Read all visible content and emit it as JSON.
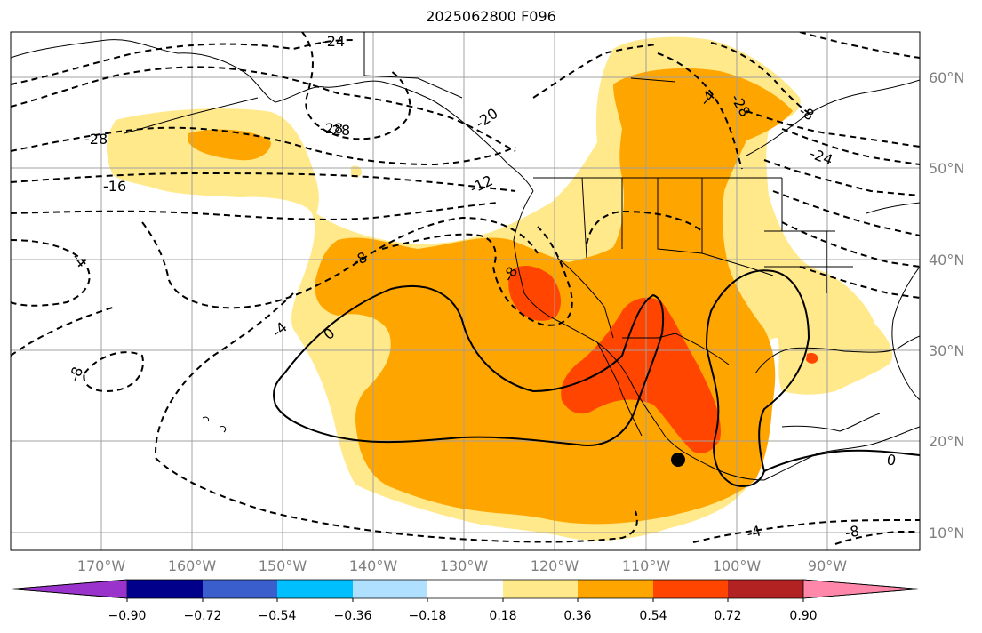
{
  "title": "2025062800 F096",
  "lat_labels": [
    "60°N",
    "50°N",
    "40°N",
    "30°N",
    "20°N",
    "10°N"
  ],
  "lon_labels": [
    "170°W",
    "160°W",
    "150°W",
    "140°W",
    "130°W",
    "120°W",
    "110°W",
    "100°W",
    "90°W"
  ],
  "contour_labels": [
    "-24",
    "-28",
    "-28",
    "-28",
    "-20",
    "-24",
    "-16",
    "-12",
    "-8",
    "-8",
    "-4",
    "-4",
    "-8",
    "0",
    "-4",
    "-8",
    "-28",
    "0",
    "-8",
    "-4"
  ],
  "colorbar": {
    "ticks": [
      "−0.90",
      "−0.72",
      "−0.54",
      "−0.36",
      "−0.18",
      "0.18",
      "0.36",
      "0.54",
      "0.72",
      "0.90"
    ],
    "colors": [
      "#9933cc",
      "#00008b",
      "#3a5fcd",
      "#00bfff",
      "#b0e0ff",
      "#ffffff",
      "#ffe98a",
      "#ffa500",
      "#ff4500",
      "#b22222",
      "#ff88aa"
    ]
  },
  "colors": {
    "level1": "#ffe98a",
    "level2": "#ffa500",
    "level3": "#ff4500",
    "grid": "#a0a0a0"
  },
  "marker": "storm-center-dot"
}
